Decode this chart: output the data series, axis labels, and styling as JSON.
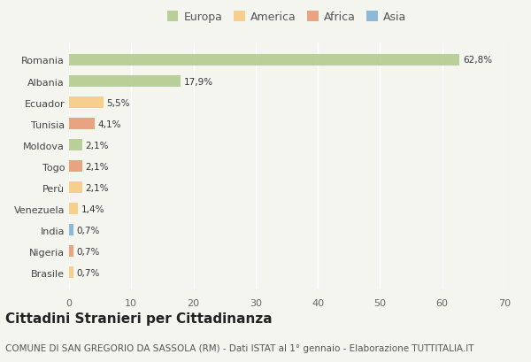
{
  "countries": [
    "Romania",
    "Albania",
    "Ecuador",
    "Tunisia",
    "Moldova",
    "Togo",
    "Perù",
    "Venezuela",
    "India",
    "Nigeria",
    "Brasile"
  ],
  "values": [
    62.8,
    17.9,
    5.5,
    4.1,
    2.1,
    2.1,
    2.1,
    1.4,
    0.7,
    0.7,
    0.7
  ],
  "labels": [
    "62,8%",
    "17,9%",
    "5,5%",
    "4,1%",
    "2,1%",
    "2,1%",
    "2,1%",
    "1,4%",
    "0,7%",
    "0,7%",
    "0,7%"
  ],
  "continents": [
    "Europa",
    "Europa",
    "America",
    "Africa",
    "Europa",
    "Africa",
    "America",
    "America",
    "Asia",
    "Africa",
    "America"
  ],
  "colors": {
    "Europa": "#aec98a",
    "America": "#f5c97a",
    "Africa": "#e8956d",
    "Asia": "#7bafd4"
  },
  "legend_colors": {
    "Europa": "#aec98a",
    "America": "#f5c97a",
    "Africa": "#e8956d",
    "Asia": "#7bafd4"
  },
  "xlim": [
    0,
    70
  ],
  "xticks": [
    0,
    10,
    20,
    30,
    40,
    50,
    60,
    70
  ],
  "title": "Cittadini Stranieri per Cittadinanza",
  "subtitle": "COMUNE DI SAN GREGORIO DA SASSOLA (RM) - Dati ISTAT al 1° gennaio - Elaborazione TUTTITALIA.IT",
  "bg_color": "#f5f5f0",
  "bar_alpha": 0.85,
  "title_fontsize": 11,
  "subtitle_fontsize": 7.5,
  "label_fontsize": 7.5,
  "tick_fontsize": 8,
  "legend_fontsize": 9
}
